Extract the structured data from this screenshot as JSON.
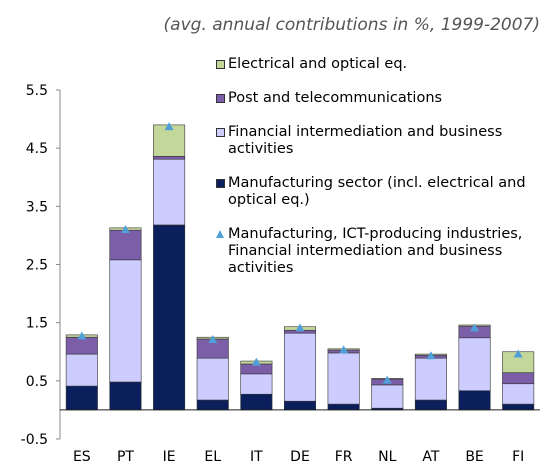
{
  "chart_data": {
    "type": "bar",
    "stacked": true,
    "title": "(avg. annual contributions in %, 1999-2007)",
    "categories": [
      "ES",
      "PT",
      "IE",
      "EL",
      "IT",
      "DE",
      "FR",
      "NL",
      "AT",
      "BE",
      "FI"
    ],
    "series": [
      {
        "name": "Electrical and optical eq.",
        "color": "#c4d79b",
        "values": [
          0.04,
          0.04,
          0.54,
          0.03,
          0.05,
          0.06,
          0.02,
          0.01,
          0.02,
          0.02,
          0.36
        ]
      },
      {
        "name": "Post and telecommunications",
        "color": "#7b5ea7",
        "values": [
          0.29,
          0.51,
          0.05,
          0.33,
          0.17,
          0.05,
          0.05,
          0.1,
          0.05,
          0.2,
          0.19
        ]
      },
      {
        "name": "Financial intermediation and business activities",
        "color": "#ccccff",
        "values": [
          0.55,
          2.1,
          1.13,
          0.72,
          0.35,
          1.17,
          0.88,
          0.4,
          0.72,
          0.91,
          0.35
        ]
      },
      {
        "name": "Manufacturing sector (incl. electrical and optical eq.)",
        "color": "#0a1f5c",
        "values": [
          0.41,
          0.48,
          3.18,
          0.17,
          0.27,
          0.15,
          0.1,
          0.03,
          0.17,
          0.33,
          0.1
        ]
      },
      {
        "name": "Manufacturing, ICT-producing industries, Financial intermediation and business activities",
        "color": "#4fa0d8",
        "type": "marker",
        "marker": "triangle",
        "values": [
          1.28,
          3.11,
          4.88,
          1.22,
          0.83,
          1.42,
          1.04,
          0.52,
          0.94,
          1.42,
          0.97
        ]
      }
    ],
    "ylim": [
      -0.5,
      5.5
    ],
    "yticks": [
      -0.5,
      0.5,
      1.5,
      2.5,
      3.5,
      4.5,
      5.5
    ],
    "grid": false
  }
}
